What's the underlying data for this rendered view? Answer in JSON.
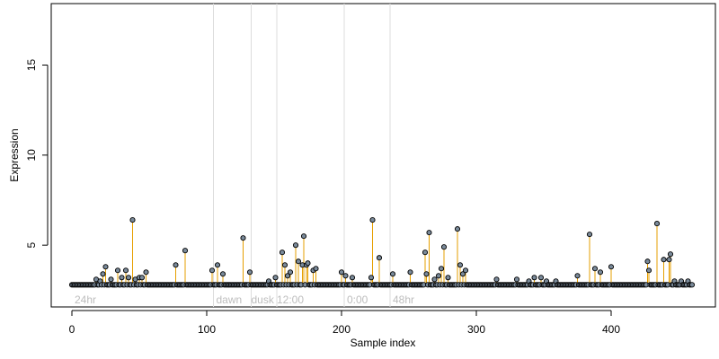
{
  "chart_data": {
    "type": "scatter",
    "title": "",
    "xlabel": "Sample index",
    "ylabel": "Expression",
    "xlim": [
      0,
      480
    ],
    "ylim": [
      2.0,
      18.5
    ],
    "x_ticks": [
      0,
      100,
      200,
      300,
      400
    ],
    "y_ticks": [
      5,
      10,
      15
    ],
    "grid": false,
    "baseline": 2.8,
    "colors": {
      "point_fill": "#7a8a9a",
      "point_stroke": "#000000",
      "stem": "#e69f00",
      "baseline": "#9ec3e6",
      "annotation": "#bdbdbd",
      "vline": "#dcdcdc"
    },
    "annotations": [
      {
        "label": "24hr",
        "x": 2
      },
      {
        "label": "dawn",
        "x": 107
      },
      {
        "label": "dusk",
        "x": 133
      },
      {
        "label": "12:00",
        "x": 152
      },
      {
        "label": "0:00",
        "x": 204
      },
      {
        "label": "48hr",
        "x": 238
      }
    ],
    "vlines": [
      105,
      133,
      152,
      202,
      236
    ],
    "highlights": [
      {
        "x": 18,
        "y": 3.1
      },
      {
        "x": 21,
        "y": 3.0
      },
      {
        "x": 23,
        "y": 3.4
      },
      {
        "x": 25,
        "y": 3.8
      },
      {
        "x": 29,
        "y": 3.1
      },
      {
        "x": 34,
        "y": 3.6
      },
      {
        "x": 37,
        "y": 3.2
      },
      {
        "x": 40,
        "y": 3.6
      },
      {
        "x": 42,
        "y": 3.2
      },
      {
        "x": 45,
        "y": 6.4
      },
      {
        "x": 47,
        "y": 3.1
      },
      {
        "x": 50,
        "y": 3.2
      },
      {
        "x": 52,
        "y": 3.2
      },
      {
        "x": 55,
        "y": 3.5
      },
      {
        "x": 77,
        "y": 3.9
      },
      {
        "x": 84,
        "y": 4.7
      },
      {
        "x": 104,
        "y": 3.6
      },
      {
        "x": 108,
        "y": 3.9
      },
      {
        "x": 112,
        "y": 3.4
      },
      {
        "x": 127,
        "y": 5.4
      },
      {
        "x": 132,
        "y": 3.5
      },
      {
        "x": 146,
        "y": 3.0
      },
      {
        "x": 151,
        "y": 3.2
      },
      {
        "x": 156,
        "y": 4.6
      },
      {
        "x": 158,
        "y": 3.9
      },
      {
        "x": 160,
        "y": 3.3
      },
      {
        "x": 162,
        "y": 3.5
      },
      {
        "x": 166,
        "y": 5.0
      },
      {
        "x": 168,
        "y": 4.1
      },
      {
        "x": 171,
        "y": 3.9
      },
      {
        "x": 172,
        "y": 5.5
      },
      {
        "x": 174,
        "y": 3.9
      },
      {
        "x": 175,
        "y": 4.0
      },
      {
        "x": 179,
        "y": 3.6
      },
      {
        "x": 181,
        "y": 3.7
      },
      {
        "x": 200,
        "y": 3.5
      },
      {
        "x": 203,
        "y": 3.3
      },
      {
        "x": 208,
        "y": 3.2
      },
      {
        "x": 222,
        "y": 3.2
      },
      {
        "x": 223,
        "y": 6.4
      },
      {
        "x": 228,
        "y": 4.3
      },
      {
        "x": 238,
        "y": 3.4
      },
      {
        "x": 251,
        "y": 3.5
      },
      {
        "x": 262,
        "y": 4.6
      },
      {
        "x": 263,
        "y": 3.4
      },
      {
        "x": 265,
        "y": 5.7
      },
      {
        "x": 269,
        "y": 3.1
      },
      {
        "x": 272,
        "y": 3.3
      },
      {
        "x": 274,
        "y": 3.7
      },
      {
        "x": 276,
        "y": 4.9
      },
      {
        "x": 279,
        "y": 3.2
      },
      {
        "x": 286,
        "y": 5.9
      },
      {
        "x": 288,
        "y": 3.9
      },
      {
        "x": 290,
        "y": 3.4
      },
      {
        "x": 292,
        "y": 3.6
      },
      {
        "x": 315,
        "y": 3.1
      },
      {
        "x": 330,
        "y": 3.1
      },
      {
        "x": 339,
        "y": 3.0
      },
      {
        "x": 343,
        "y": 3.2
      },
      {
        "x": 348,
        "y": 3.2
      },
      {
        "x": 352,
        "y": 3.0
      },
      {
        "x": 359,
        "y": 3.0
      },
      {
        "x": 375,
        "y": 3.3
      },
      {
        "x": 384,
        "y": 5.6
      },
      {
        "x": 388,
        "y": 3.7
      },
      {
        "x": 392,
        "y": 3.5
      },
      {
        "x": 400,
        "y": 3.8
      },
      {
        "x": 427,
        "y": 4.1
      },
      {
        "x": 428,
        "y": 3.6
      },
      {
        "x": 434,
        "y": 6.2
      },
      {
        "x": 439,
        "y": 4.2
      },
      {
        "x": 443,
        "y": 4.2
      },
      {
        "x": 444,
        "y": 4.5
      },
      {
        "x": 447,
        "y": 3.0
      },
      {
        "x": 452,
        "y": 3.0
      },
      {
        "x": 457,
        "y": 3.0
      }
    ],
    "n_points": 460
  }
}
